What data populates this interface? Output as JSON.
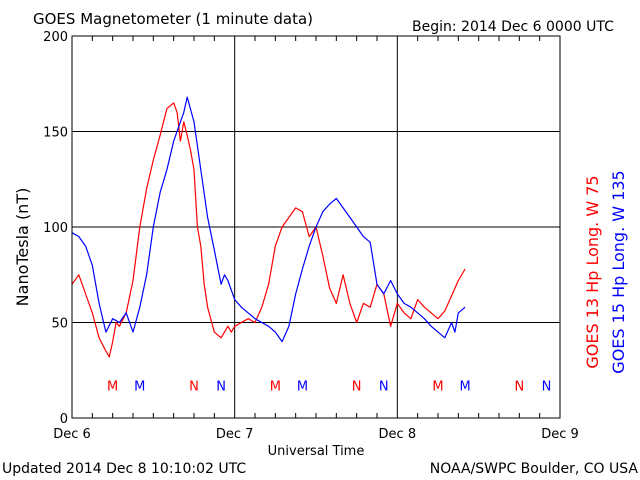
{
  "header": {
    "title": "GOES Magnetometer (1 minute data)",
    "begin": "Begin:  2014 Dec 6 0000 UTC"
  },
  "footer": {
    "updated": "Updated 2014 Dec  8 10:10:02 UTC",
    "source": "NOAA/SWPC Boulder, CO USA"
  },
  "colors": {
    "goes13": "#ff0000",
    "goes15": "#0000ff",
    "text": "#000000",
    "grid": "#000000"
  },
  "chart_data": {
    "type": "line",
    "title": "GOES Magnetometer (1 minute data)",
    "xlabel": "Universal Time",
    "ylabel": "NanoTesla (nT)",
    "xlim": [
      0,
      72
    ],
    "ylim": [
      0,
      200
    ],
    "grid": true,
    "x_ticks": [
      {
        "x": 0,
        "label": "Dec 6"
      },
      {
        "x": 24,
        "label": "Dec 7"
      },
      {
        "x": 48,
        "label": "Dec 8"
      },
      {
        "x": 72,
        "label": "Dec 9"
      }
    ],
    "y_ticks": [
      0,
      50,
      100,
      150,
      200
    ],
    "legend_placement": "right (vertical)",
    "series": [
      {
        "name": "GOES 13 Hp  Long. W 75",
        "color": "#ff0000",
        "x": [
          0,
          1,
          2,
          3,
          4,
          5,
          5.5,
          6,
          6.5,
          7,
          8,
          9,
          10,
          11,
          12,
          13,
          14,
          15,
          15.5,
          16,
          16.5,
          17,
          17.5,
          18,
          18.5,
          19,
          19.5,
          20,
          21,
          22,
          23,
          23.5,
          24,
          25,
          26,
          27,
          28,
          29,
          30,
          31,
          32,
          33,
          34,
          35,
          36,
          37,
          38,
          39,
          40,
          41,
          42,
          43,
          44,
          45,
          46,
          47,
          48,
          49,
          50,
          51,
          52,
          53,
          54,
          55,
          56,
          57,
          58
        ],
        "y": [
          70,
          75,
          65,
          55,
          42,
          35,
          32,
          40,
          50,
          48,
          55,
          72,
          100,
          120,
          135,
          148,
          162,
          165,
          160,
          145,
          155,
          148,
          140,
          130,
          100,
          90,
          70,
          58,
          45,
          42,
          48,
          45,
          48,
          50,
          52,
          50,
          58,
          70,
          90,
          100,
          105,
          110,
          108,
          95,
          100,
          85,
          68,
          60,
          75,
          60,
          50,
          60,
          58,
          70,
          65,
          48,
          60,
          55,
          52,
          62,
          58,
          55,
          52,
          56,
          64,
          72,
          78
        ]
      },
      {
        "name": "GOES 15 Hp  Long. W 135",
        "color": "#0000ff",
        "x": [
          0,
          1,
          2,
          3,
          4,
          5,
          6,
          7,
          8,
          9,
          10,
          11,
          12,
          13,
          14,
          15,
          16,
          16.5,
          17,
          18,
          19,
          20,
          21,
          22,
          22.5,
          23,
          24,
          25,
          26,
          27,
          28,
          29,
          30,
          31,
          32,
          33,
          34,
          35,
          36,
          37,
          38,
          39,
          40,
          41,
          42,
          43,
          44,
          45,
          46,
          47,
          48,
          49,
          50,
          51,
          52,
          53,
          54,
          55,
          56,
          56.5,
          57,
          58
        ],
        "y": [
          97,
          95,
          90,
          80,
          60,
          45,
          52,
          50,
          55,
          45,
          58,
          75,
          100,
          118,
          130,
          145,
          155,
          160,
          168,
          155,
          130,
          105,
          88,
          70,
          75,
          72,
          62,
          58,
          55,
          52,
          50,
          48,
          45,
          40,
          48,
          65,
          78,
          90,
          100,
          108,
          112,
          115,
          110,
          105,
          100,
          95,
          92,
          70,
          65,
          72,
          65,
          60,
          58,
          55,
          52,
          48,
          45,
          42,
          50,
          45,
          55,
          58
        ]
      }
    ],
    "annotations": [
      {
        "text": "M",
        "x": 6,
        "y": 17,
        "color": "#ff0000"
      },
      {
        "text": "M",
        "x": 10,
        "y": 17,
        "color": "#0000ff"
      },
      {
        "text": "N",
        "x": 18,
        "y": 17,
        "color": "#ff0000"
      },
      {
        "text": "N",
        "x": 22,
        "y": 17,
        "color": "#0000ff"
      },
      {
        "text": "M",
        "x": 30,
        "y": 17,
        "color": "#ff0000"
      },
      {
        "text": "M",
        "x": 34,
        "y": 17,
        "color": "#0000ff"
      },
      {
        "text": "N",
        "x": 42,
        "y": 17,
        "color": "#ff0000"
      },
      {
        "text": "N",
        "x": 46,
        "y": 17,
        "color": "#0000ff"
      },
      {
        "text": "M",
        "x": 54,
        "y": 17,
        "color": "#ff0000"
      },
      {
        "text": "M",
        "x": 58,
        "y": 17,
        "color": "#0000ff"
      },
      {
        "text": "N",
        "x": 66,
        "y": 17,
        "color": "#ff0000"
      },
      {
        "text": "N",
        "x": 70,
        "y": 17,
        "color": "#0000ff"
      }
    ]
  }
}
